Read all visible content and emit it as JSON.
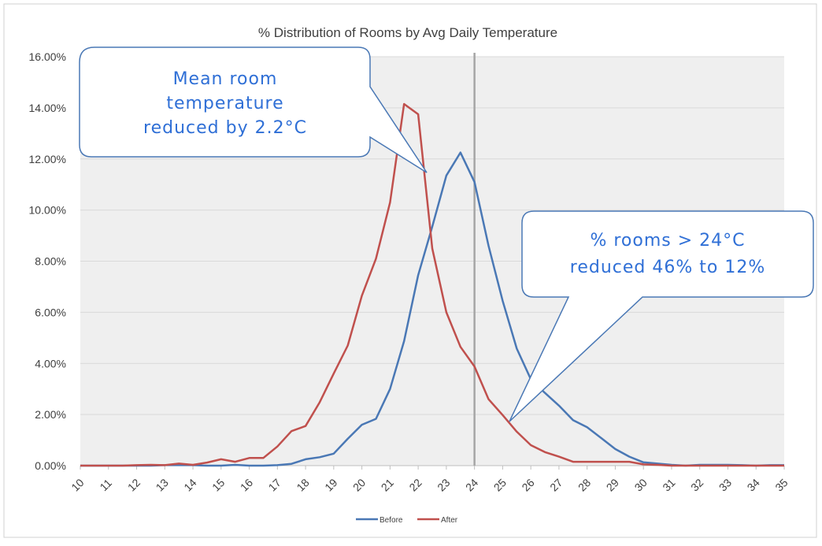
{
  "chart_data": {
    "type": "line",
    "title": "% Distribution of Rooms by Avg Daily Temperature",
    "xlabel": "",
    "ylabel": "",
    "categories": [
      "10",
      "11",
      "12",
      "13",
      "14",
      "15",
      "16",
      "17",
      "18",
      "19",
      "20",
      "21",
      "22",
      "23",
      "24",
      "25",
      "26",
      "27",
      "28",
      "29",
      "30",
      "31",
      "32",
      "33",
      "34",
      "35"
    ],
    "x_step": 0.5,
    "ylim": [
      0,
      0.16
    ],
    "y_ticks": [
      "0.00%",
      "2.00%",
      "4.00%",
      "6.00%",
      "8.00%",
      "10.00%",
      "12.00%",
      "14.00%",
      "16.00%"
    ],
    "grid": true,
    "legend_position": "bottom",
    "reference_line_x": 24,
    "series": [
      {
        "name": "Before",
        "color": "#4a78b5",
        "x": [
          10,
          10.5,
          11,
          11.5,
          12,
          12.5,
          13,
          13.5,
          14,
          14.5,
          15,
          15.5,
          16,
          16.5,
          17,
          17.5,
          18,
          18.5,
          19,
          19.5,
          20,
          20.5,
          21,
          21.5,
          22,
          22.5,
          23,
          23.5,
          24,
          24.5,
          25,
          25.5,
          26,
          26.5,
          27,
          27.5,
          28,
          28.5,
          29,
          29.5,
          30,
          30.5,
          31,
          31.5,
          32,
          32.5,
          33,
          33.5,
          34,
          34.5,
          35
        ],
        "values": [
          0,
          0,
          0,
          0,
          0,
          0,
          0.0002,
          0.0002,
          0.0002,
          0,
          0,
          0.0003,
          0,
          0,
          0.0002,
          0.0007,
          0.0025,
          0.0033,
          0.0047,
          0.0105,
          0.016,
          0.0183,
          0.03,
          0.0487,
          0.0745,
          0.0935,
          0.1135,
          0.1225,
          0.111,
          0.086,
          0.0645,
          0.0458,
          0.0338,
          0.0285,
          0.0235,
          0.0178,
          0.015,
          0.0108,
          0.0065,
          0.0035,
          0.0013,
          0.0008,
          0.0003,
          0,
          0.0003,
          0.0003,
          0.0003,
          0.0002,
          0,
          0.0002,
          0.0002
        ]
      },
      {
        "name": "After",
        "color": "#c0504d",
        "x": [
          10,
          10.5,
          11,
          11.5,
          12,
          12.5,
          13,
          13.5,
          14,
          14.5,
          15,
          15.5,
          16,
          16.5,
          17,
          17.5,
          18,
          18.5,
          19,
          19.5,
          20,
          20.5,
          21,
          21.5,
          22,
          22.5,
          23,
          23.5,
          24,
          24.5,
          25,
          25.5,
          26,
          26.5,
          27,
          27.5,
          28,
          28.5,
          29,
          29.5,
          30,
          30.5,
          31,
          31.5,
          32,
          32.5,
          33,
          33.5,
          34,
          34.5,
          35
        ],
        "values": [
          0,
          0,
          0,
          0,
          0.0002,
          0.0003,
          0.0002,
          0.0008,
          0.0003,
          0.0012,
          0.0025,
          0.0015,
          0.003,
          0.003,
          0.0075,
          0.0135,
          0.0155,
          0.0248,
          0.036,
          0.047,
          0.0665,
          0.081,
          0.103,
          0.1415,
          0.1375,
          0.085,
          0.06,
          0.0465,
          0.0388,
          0.026,
          0.0198,
          0.0133,
          0.008,
          0.0053,
          0.0035,
          0.0015,
          0.0015,
          0.0015,
          0.0015,
          0.0015,
          0.0005,
          0.0003,
          0,
          0,
          0,
          0,
          0,
          0,
          0,
          0,
          0
        ]
      }
    ]
  },
  "annotations": [
    {
      "lines": [
        "Mean room",
        "temperature",
        "reduced by 2.2°C"
      ]
    },
    {
      "lines": [
        "% rooms > 24°C",
        "reduced 46% to 12%"
      ]
    }
  ]
}
